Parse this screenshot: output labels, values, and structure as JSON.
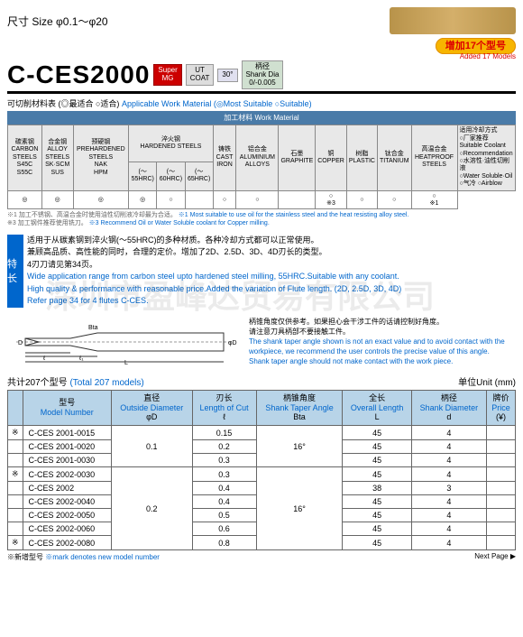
{
  "size_label": "尺寸 Size φ0.1～φ20",
  "added_badge": "增加17个型号",
  "added_sub": "Added 17 Models",
  "title": "C-CES2000",
  "badges": {
    "mg": "Super\nMG",
    "ut": "UT\nCOAT",
    "deg": "30°",
    "shank": "柄径\nShank Dia\n0/-0.005"
  },
  "subtitle_cn": "可切削材料表 (◎最适合 ○适合)",
  "subtitle_en": "Applicable Work Material (◎Most Suitable ○Suitable)",
  "mat_header": "加工材料   Work Material",
  "mat_cols": [
    {
      "cn": "碳素钢",
      "en": "CARBON STEELS",
      "sub": "S45C\nS55C"
    },
    {
      "cn": "合金钢",
      "en": "ALLOY STEELS",
      "sub": "SK·SCM\nSUS"
    },
    {
      "cn": "预硬钢",
      "en": "PREHARDENED STEELS",
      "sub": "NAK\nHPM"
    },
    {
      "cn": "淬火钢",
      "en": "HARDENED STEELS",
      "sub": ""
    },
    {
      "cn": "铸铁",
      "en": "CAST IRON",
      "sub": ""
    },
    {
      "cn": "铝合金",
      "en": "ALUMINIUM ALLOYS",
      "sub": ""
    },
    {
      "cn": "石墨",
      "en": "GRAPHITE",
      "sub": ""
    },
    {
      "cn": "铜",
      "en": "COPPER",
      "sub": ""
    },
    {
      "cn": "树脂",
      "en": "PLASTIC",
      "sub": ""
    },
    {
      "cn": "钛合金",
      "en": "TITANIUM",
      "sub": ""
    },
    {
      "cn": "高温合金",
      "en": "HEATPROOF STEELS",
      "sub": ""
    }
  ],
  "hardened_sub": [
    "(～55HRC)",
    "(～60HRC)",
    "(～65HRC)"
  ],
  "mat_values": [
    "◎",
    "◎",
    "◎",
    "◎",
    "○",
    "",
    "○",
    "○",
    "",
    "○\n※3",
    "○",
    "○",
    "○\n※1"
  ],
  "coolant": {
    "title_cn": "适用冷却方式",
    "title_en": "○厂家推荐",
    "l1": "Suitable Coolant",
    "l2": "○Recommendation",
    "opt1_cn": "○水溶性·油性切削液",
    "opt1_en": "○Water Soluble·Oil",
    "opt2_cn": "○气冷",
    "opt2_en": "○Airblow"
  },
  "notes_cn": "※1 加工不锈钢、高温合金时使用油性切削液冷却最为合适。",
  "notes_en": "※1 Most suitable to use oil for the stainless steel and the heat resisting alloy steel.",
  "notes3_cn": "※3 加工钢件推荐使用铣刀。",
  "notes3_en": "※3 Recommend Oil or Water Soluble coolant for Copper milling.",
  "feature_label": "特长",
  "feature_cn": "适用于从碳素钢到淬火钢(～55HRC)的多种材质。各种冷却方式都可以正常使用。\n兼顾高品质、高性能的同时，合理的定价。增加了2D、2.5D、3D、4D刃长的类型。\n4刃刀请见第34页。",
  "feature_en": "Wide application range from carbon steel upto hardened steel milling, 55HRC.Suitable with any coolant.\nHigh quality & performance with reasonable price.Added the variation of Flute length. (2D, 2.5D, 3D, 4D)\nRefer page 34 for 4 flutes C-CES.",
  "diag_labels": {
    "D": "D",
    "phiD": "φD",
    "l": "ℓ",
    "L": "L",
    "l1": "ℓ1",
    "Bta": "Bta"
  },
  "diag_text_cn": "柄锥角度仅供参考。如果担心会干涉工件的话请控制好角度。\n请注意刀具柄部不要接触工件。",
  "diag_text_en": "The shank taper angle shown is not an exact value and to avoid contact with the workpiece, we recommend the user controls the precise value of this angle.\nShank taper angle should not make contact with the work piece.",
  "total_cn": "共计207个型号",
  "total_en": "(Total 207 models)",
  "unit": "单位Unit (mm)",
  "headers": [
    {
      "cn": "型号",
      "en": "Model Number",
      "sym": ""
    },
    {
      "cn": "直径",
      "en": "Outside Diameter",
      "sym": "φD"
    },
    {
      "cn": "刃长",
      "en": "Length of Cut",
      "sym": "ℓ"
    },
    {
      "cn": "柄锥角度",
      "en": "Shank Taper Angle",
      "sym": "Bta"
    },
    {
      "cn": "全长",
      "en": "Overall Length",
      "sym": "L"
    },
    {
      "cn": "柄径",
      "en": "Shank Diameter",
      "sym": "d"
    },
    {
      "cn": "牌价",
      "en": "Price",
      "sym": "(¥)"
    }
  ],
  "rows": [
    {
      "star": "※",
      "model": "C-CES 2001-0015",
      "d": "",
      "l": "0.15",
      "bta": "",
      "L": "45",
      "sd": "4",
      "p": ""
    },
    {
      "star": "",
      "model": "C-CES 2001-0020",
      "d": "0.1",
      "l": "0.2",
      "bta": "16°",
      "L": "45",
      "sd": "4",
      "p": ""
    },
    {
      "star": "",
      "model": "C-CES 2001-0030",
      "d": "",
      "l": "0.3",
      "bta": "",
      "L": "45",
      "sd": "4",
      "p": ""
    },
    {
      "star": "※",
      "model": "C-CES 2002-0030",
      "d": "",
      "l": "0.3",
      "bta": "",
      "L": "45",
      "sd": "4",
      "p": ""
    },
    {
      "star": "",
      "model": "C-CES 2002",
      "d": "",
      "l": "0.4",
      "bta": "",
      "L": "38",
      "sd": "3",
      "p": ""
    },
    {
      "star": "",
      "model": "C-CES 2002-0040",
      "d": "0.2",
      "l": "0.4",
      "bta": "16°",
      "L": "45",
      "sd": "4",
      "p": ""
    },
    {
      "star": "",
      "model": "C-CES 2002-0050",
      "d": "",
      "l": "0.5",
      "bta": "",
      "L": "45",
      "sd": "4",
      "p": ""
    },
    {
      "star": "",
      "model": "C-CES 2002-0060",
      "d": "",
      "l": "0.6",
      "bta": "",
      "L": "45",
      "sd": "4",
      "p": ""
    },
    {
      "star": "※",
      "model": "C-CES 2002-0080",
      "d": "",
      "l": "0.8",
      "bta": "",
      "L": "45",
      "sd": "4",
      "p": ""
    }
  ],
  "footer_cn": "※新增型号",
  "footer_en": "※mark denotes new model number",
  "next": "Next Page ▶",
  "watermark": "深圳市盈峰达贸易有限公司"
}
